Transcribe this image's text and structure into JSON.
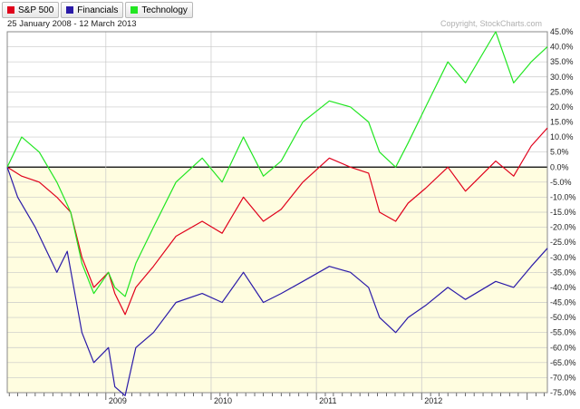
{
  "legend": [
    {
      "label": "S&P 500",
      "color": "#e0001b"
    },
    {
      "label": "Financials",
      "color": "#2a1aa8"
    },
    {
      "label": "Technology",
      "color": "#22e622"
    }
  ],
  "header": {
    "date_range": "25 January 2008 - 12 March 2013",
    "copyright": "Copyright, StockCharts.com"
  },
  "chart_data": {
    "type": "line",
    "x_tick_labels": [
      "2009",
      "2010",
      "2011",
      "2012"
    ],
    "x_range": [
      "2008-01-25",
      "2013-03-12"
    ],
    "ylim": [
      -75,
      45
    ],
    "y_tick_labels": [
      "45.0%",
      "40.0%",
      "35.0%",
      "30.0%",
      "25.0%",
      "20.0%",
      "15.0%",
      "10.0%",
      "5.0%",
      "0.0%",
      "-5.0%",
      "-10.0%",
      "-15.0%",
      "-20.0%",
      "-25.0%",
      "-30.0%",
      "-35.0%",
      "-40.0%",
      "-45.0%",
      "-50.0%",
      "-55.0%",
      "-60.0%",
      "-65.0%",
      "-70.0%",
      "-75.0%"
    ],
    "y_ticks": [
      45,
      40,
      35,
      30,
      25,
      20,
      15,
      10,
      5,
      0,
      -5,
      -10,
      -15,
      -20,
      -25,
      -30,
      -35,
      -40,
      -45,
      -50,
      -55,
      -60,
      -65,
      -70,
      -75
    ],
    "zero_line": true,
    "background_below_zero": "#fffde0",
    "series": [
      {
        "name": "S&P 500",
        "color": "#e0001b",
        "x": [
          "2008-01-25",
          "2008-03-15",
          "2008-05-15",
          "2008-07-15",
          "2008-09-01",
          "2008-10-10",
          "2008-11-20",
          "2009-01-10",
          "2009-02-01",
          "2009-03-09",
          "2009-04-15",
          "2009-06-15",
          "2009-09-01",
          "2009-12-01",
          "2010-02-08",
          "2010-04-23",
          "2010-07-01",
          "2010-09-01",
          "2010-11-15",
          "2011-02-15",
          "2011-04-29",
          "2011-07-01",
          "2011-08-08",
          "2011-10-03",
          "2011-11-15",
          "2012-01-15",
          "2012-04-01",
          "2012-06-01",
          "2012-09-14",
          "2012-11-15",
          "2013-01-15",
          "2013-03-12"
        ],
        "y": [
          0,
          -3,
          -5,
          -10,
          -15,
          -30,
          -40,
          -35,
          -42,
          -49,
          -40,
          -33,
          -23,
          -18,
          -22,
          -10,
          -18,
          -14,
          -5,
          3,
          0,
          -2,
          -15,
          -18,
          -12,
          -7,
          0,
          -8,
          2,
          -3,
          7,
          13
        ]
      },
      {
        "name": "Financials",
        "color": "#2a1aa8",
        "x": [
          "2008-01-25",
          "2008-03-01",
          "2008-05-01",
          "2008-07-15",
          "2008-08-20",
          "2008-10-10",
          "2008-11-20",
          "2009-01-10",
          "2009-02-01",
          "2009-03-09",
          "2009-04-15",
          "2009-06-15",
          "2009-09-01",
          "2009-12-01",
          "2010-02-08",
          "2010-04-23",
          "2010-07-01",
          "2010-09-01",
          "2010-11-15",
          "2011-02-15",
          "2011-04-29",
          "2011-07-01",
          "2011-08-08",
          "2011-10-03",
          "2011-11-15",
          "2012-01-15",
          "2012-04-01",
          "2012-06-01",
          "2012-09-14",
          "2012-11-15",
          "2013-01-15",
          "2013-03-12"
        ],
        "y": [
          0,
          -10,
          -20,
          -35,
          -28,
          -55,
          -65,
          -60,
          -73,
          -76,
          -60,
          -55,
          -45,
          -42,
          -45,
          -35,
          -45,
          -42,
          -38,
          -33,
          -35,
          -40,
          -50,
          -55,
          -50,
          -46,
          -40,
          -44,
          -38,
          -40,
          -33,
          -27
        ]
      },
      {
        "name": "Technology",
        "color": "#22e622",
        "x": [
          "2008-01-25",
          "2008-03-15",
          "2008-05-15",
          "2008-07-15",
          "2008-09-01",
          "2008-10-10",
          "2008-11-20",
          "2009-01-10",
          "2009-02-01",
          "2009-03-09",
          "2009-04-15",
          "2009-06-15",
          "2009-09-01",
          "2009-12-01",
          "2010-02-08",
          "2010-04-23",
          "2010-07-01",
          "2010-09-01",
          "2010-11-15",
          "2011-02-15",
          "2011-04-29",
          "2011-07-01",
          "2011-08-08",
          "2011-10-03",
          "2011-11-15",
          "2012-01-15",
          "2012-04-01",
          "2012-06-01",
          "2012-09-14",
          "2012-11-15",
          "2013-01-15",
          "2013-03-12"
        ],
        "y": [
          0,
          10,
          5,
          -5,
          -15,
          -32,
          -42,
          -35,
          -40,
          -43,
          -32,
          -20,
          -5,
          3,
          -5,
          10,
          -3,
          2,
          15,
          22,
          20,
          15,
          5,
          0,
          8,
          20,
          35,
          28,
          45,
          28,
          35,
          40
        ]
      }
    ]
  }
}
